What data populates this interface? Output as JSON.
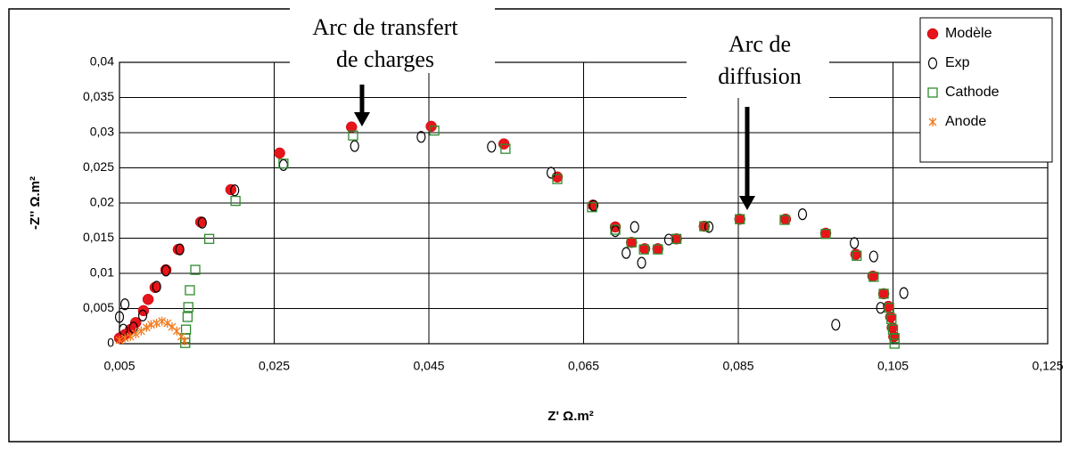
{
  "chart_data": {
    "type": "scatter",
    "xlabel": "Z' Ω.m²",
    "ylabel": "-Z'' Ω.m²",
    "xlim": [
      0.005,
      0.125
    ],
    "ylim": [
      0,
      0.04
    ],
    "xticks": [
      {
        "value": 0.005,
        "label": "0,005"
      },
      {
        "value": 0.025,
        "label": "0,025"
      },
      {
        "value": 0.045,
        "label": "0,045"
      },
      {
        "value": 0.065,
        "label": "0,065"
      },
      {
        "value": 0.085,
        "label": "0,085"
      },
      {
        "value": 0.105,
        "label": "0,105"
      },
      {
        "value": 0.125,
        "label": "0,125"
      }
    ],
    "yticks": [
      0,
      {
        "value": 0.005,
        "label": "0,005"
      },
      {
        "value": 0.01,
        "label": "0,01"
      },
      {
        "value": 0.015,
        "label": "0,015"
      },
      {
        "value": 0.02,
        "label": "0,02"
      },
      {
        "value": 0.025,
        "label": "0,025"
      },
      {
        "value": 0.03,
        "label": "0,03"
      },
      {
        "value": 0.035,
        "label": "0,035"
      },
      {
        "value": 0.04,
        "label": "0,04"
      }
    ],
    "grid": true,
    "legend": "top-right",
    "annotations": [
      {
        "lines": [
          "Arc de transfert",
          "de charges"
        ]
      },
      {
        "lines": [
          "Arc de",
          "diffusion"
        ]
      }
    ],
    "series": [
      {
        "name": "Modèle",
        "color": "#e8141b",
        "marker": "filled-circle",
        "x": [
          0.005,
          0.0057,
          0.0064,
          0.0071,
          0.0081,
          0.0087,
          0.0096,
          0.011,
          0.0126,
          0.0155,
          0.0194,
          0.0257,
          0.035,
          0.0453,
          0.0547,
          0.0616,
          0.0662,
          0.0691,
          0.0712,
          0.0729,
          0.0746,
          0.077,
          0.0806,
          0.0852,
          0.0911,
          0.0963,
          0.1002,
          0.1024,
          0.1038,
          0.1044,
          0.1047,
          0.1049,
          0.1051
        ],
        "values": [
          0.0008,
          0.0013,
          0.002,
          0.003,
          0.0047,
          0.0063,
          0.008,
          0.0105,
          0.0134,
          0.0173,
          0.0219,
          0.0271,
          0.0308,
          0.0309,
          0.0284,
          0.0237,
          0.0197,
          0.0166,
          0.0144,
          0.0135,
          0.0135,
          0.0149,
          0.0167,
          0.0177,
          0.0177,
          0.0157,
          0.0127,
          0.0096,
          0.0071,
          0.0053,
          0.0038,
          0.0023,
          0.001
        ]
      },
      {
        "name": "Exp",
        "color": "#000000",
        "marker": "open-circle",
        "x": [
          0.005,
          0.0057,
          0.0055,
          0.0068,
          0.008,
          0.0098,
          0.011,
          0.0128,
          0.0157,
          0.0199,
          0.0262,
          0.0354,
          0.044,
          0.0531,
          0.0608,
          0.0663,
          0.0691,
          0.0705,
          0.0716,
          0.0725,
          0.076,
          0.0812,
          0.0933,
          0.0976,
          0.1,
          0.1025,
          0.1034,
          0.1064
        ],
        "values": [
          0.0038,
          0.0056,
          0.002,
          0.0023,
          0.004,
          0.0081,
          0.0104,
          0.0134,
          0.0172,
          0.0218,
          0.0254,
          0.0281,
          0.0294,
          0.028,
          0.0243,
          0.0196,
          0.016,
          0.0129,
          0.0166,
          0.0115,
          0.0148,
          0.0166,
          0.0184,
          0.0027,
          0.0143,
          0.0124,
          0.0051,
          0.0072
        ]
      },
      {
        "name": "Cathode",
        "color": "#2e8b2e",
        "marker": "open-square",
        "x": [
          0.0135,
          0.0135,
          0.0136,
          0.0138,
          0.0139,
          0.0141,
          0.0148,
          0.0166,
          0.02,
          0.0262,
          0.0352,
          0.0457,
          0.0549,
          0.0616,
          0.0661,
          0.0691,
          0.0712,
          0.0728,
          0.0746,
          0.077,
          0.0806,
          0.0852,
          0.091,
          0.0963,
          0.1003,
          0.1025,
          0.1038,
          0.1045,
          0.1048,
          0.105,
          0.1052,
          0.1052
        ],
        "values": [
          0.0001,
          0.0008,
          0.002,
          0.0038,
          0.0052,
          0.0076,
          0.0105,
          0.0149,
          0.0203,
          0.0256,
          0.0296,
          0.0303,
          0.0277,
          0.0234,
          0.0194,
          0.0162,
          0.0144,
          0.0134,
          0.0134,
          0.0149,
          0.0167,
          0.0177,
          0.0176,
          0.0156,
          0.0125,
          0.0095,
          0.0071,
          0.0051,
          0.0035,
          0.002,
          0.0008,
          0
        ]
      },
      {
        "name": "Anode",
        "color": "#f07a1d",
        "marker": "star",
        "x": [
          0.005,
          0.0057,
          0.0064,
          0.0071,
          0.0078,
          0.0085,
          0.0091,
          0.0098,
          0.0105,
          0.0112,
          0.0118,
          0.0124,
          0.013,
          0.0134
        ],
        "values": [
          0.0005,
          0.0008,
          0.001,
          0.0014,
          0.0018,
          0.0023,
          0.0027,
          0.0029,
          0.0032,
          0.0029,
          0.0024,
          0.0018,
          0.001,
          0.0004
        ]
      }
    ]
  }
}
